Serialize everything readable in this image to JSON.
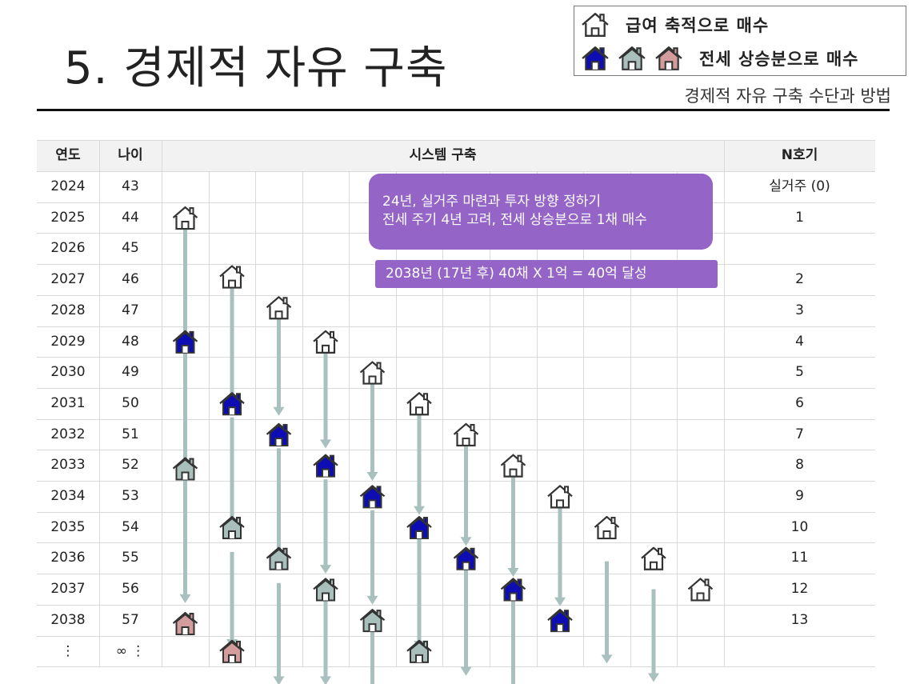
{
  "slide": {
    "title": "5. 경제적 자유 구축",
    "subtitle": "경제적 자유 구축 수단과 방법"
  },
  "legend": {
    "salary_label": "급여 축적으로 매수",
    "jeonse_label": "전세 상승분으로 매수"
  },
  "table": {
    "headers": {
      "year": "연도",
      "age": "나이",
      "system": "시스템 구축",
      "count": "N호기"
    },
    "rows": [
      {
        "year": "2024",
        "age": "43",
        "count": "실거주 (0)"
      },
      {
        "year": "2025",
        "age": "44",
        "count": "1"
      },
      {
        "year": "2026",
        "age": "45",
        "count": ""
      },
      {
        "year": "2027",
        "age": "46",
        "count": "2"
      },
      {
        "year": "2028",
        "age": "47",
        "count": "3"
      },
      {
        "year": "2029",
        "age": "48",
        "count": "4"
      },
      {
        "year": "2030",
        "age": "49",
        "count": "5"
      },
      {
        "year": "2031",
        "age": "50",
        "count": "6"
      },
      {
        "year": "2032",
        "age": "51",
        "count": "7"
      },
      {
        "year": "2033",
        "age": "52",
        "count": "8"
      },
      {
        "year": "2034",
        "age": "53",
        "count": "9"
      },
      {
        "year": "2035",
        "age": "54",
        "count": "10"
      },
      {
        "year": "2036",
        "age": "55",
        "count": "11"
      },
      {
        "year": "2037",
        "age": "56",
        "count": "12"
      },
      {
        "year": "2038",
        "age": "57",
        "count": "13"
      },
      {
        "year": "⋮",
        "age": "∞ ⋮",
        "count": ""
      }
    ]
  },
  "notes": {
    "plan_line1": "24년, 실거주 마련과 투자 방향 정하기",
    "plan_line2": "전세 주기 4년 고려, 전세 상승분으로 1채 매수",
    "goal": "2038년 (17년  후) 40채 X 1억 = 40억 달성"
  },
  "colors": {
    "outline_house": "#ffffff",
    "blue_house": "#0d0db3",
    "gray_house": "#a9bfbc",
    "pink_house": "#d49c9c",
    "arrow": "#a9c1be",
    "note_bg": "#9564c7"
  },
  "icons": [
    "house-outline-icon",
    "house-blue-icon",
    "house-gray-icon",
    "house-pink-icon",
    "down-arrow-icon"
  ]
}
